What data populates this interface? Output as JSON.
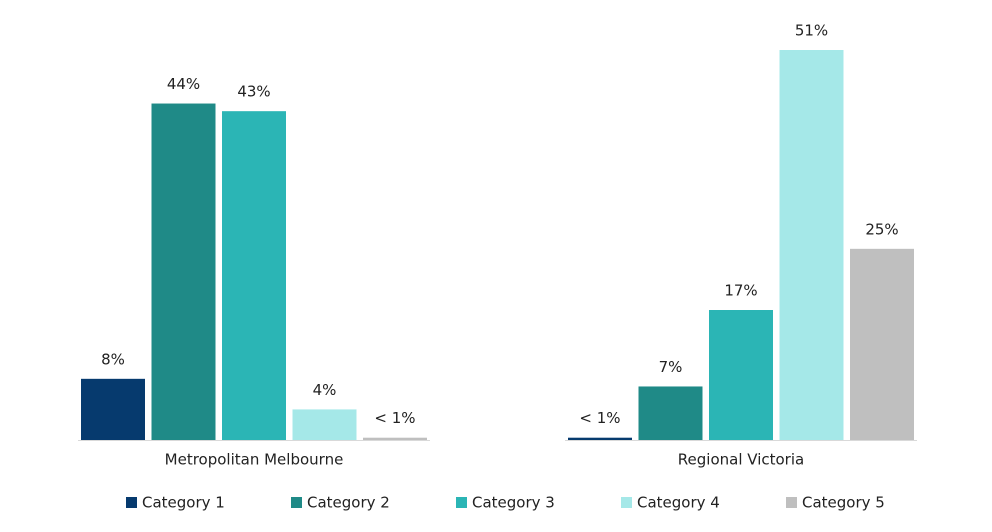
{
  "chart_data": {
    "type": "bar",
    "categories": [
      "Metropolitan Melbourne",
      "Regional Victoria"
    ],
    "series": [
      {
        "name": "Category 1",
        "color": "#063a6e",
        "values": [
          8,
          0.3
        ],
        "value_labels": [
          "8%",
          "< 1%"
        ]
      },
      {
        "name": "Category 2",
        "color": "#1f8a87",
        "values": [
          44,
          7
        ],
        "value_labels": [
          "44%",
          "7%"
        ]
      },
      {
        "name": "Category 3",
        "color": "#2bb5b5",
        "values": [
          43,
          17
        ],
        "value_labels": [
          "43%",
          "17%"
        ]
      },
      {
        "name": "Category 4",
        "color": "#a5e8e8",
        "values": [
          4,
          51
        ],
        "value_labels": [
          "4%",
          "51%"
        ]
      },
      {
        "name": "Category 5",
        "color": "#bfbfbf",
        "values": [
          0.3,
          25
        ],
        "value_labels": [
          "< 1%",
          "25%"
        ]
      }
    ],
    "legend": "bottom"
  }
}
